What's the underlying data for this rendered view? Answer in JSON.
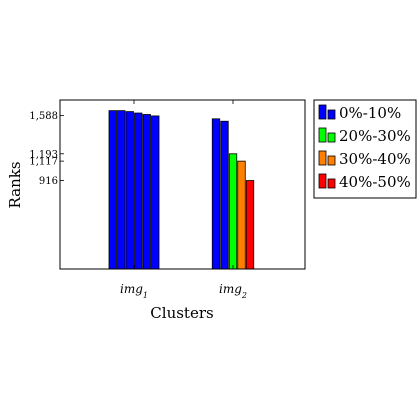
{
  "chart_data": {
    "type": "bar",
    "xlabel": "Clusters",
    "ylabel": "Ranks",
    "categories": [
      "img1",
      "img2"
    ],
    "category_labels": [
      {
        "base": "img",
        "sub": "1"
      },
      {
        "base": "img",
        "sub": "2"
      }
    ],
    "yticks": [
      916,
      1117,
      1193,
      1588
    ],
    "ytick_labels": [
      "916",
      "1,117",
      "1,193",
      "1,588"
    ],
    "ylim": [
      0,
      1750
    ],
    "series": [
      {
        "name": "0%-10%",
        "color": "#0000ff",
        "bars": [
          [
            1640,
            1640,
            1630,
            1615,
            1600,
            1585
          ],
          [
            1555,
            1530
          ]
        ]
      },
      {
        "name": "20%-30%",
        "color": "#00ff00",
        "bars": [
          [],
          [
            1193
          ]
        ]
      },
      {
        "name": "30%-40%",
        "color": "#ff8000",
        "bars": [
          [],
          [
            1117
          ]
        ]
      },
      {
        "name": "40%-50%",
        "color": "#ff0000",
        "bars": [
          [],
          [
            916
          ]
        ]
      }
    ],
    "legend_position": "outside-right",
    "grid": false
  }
}
